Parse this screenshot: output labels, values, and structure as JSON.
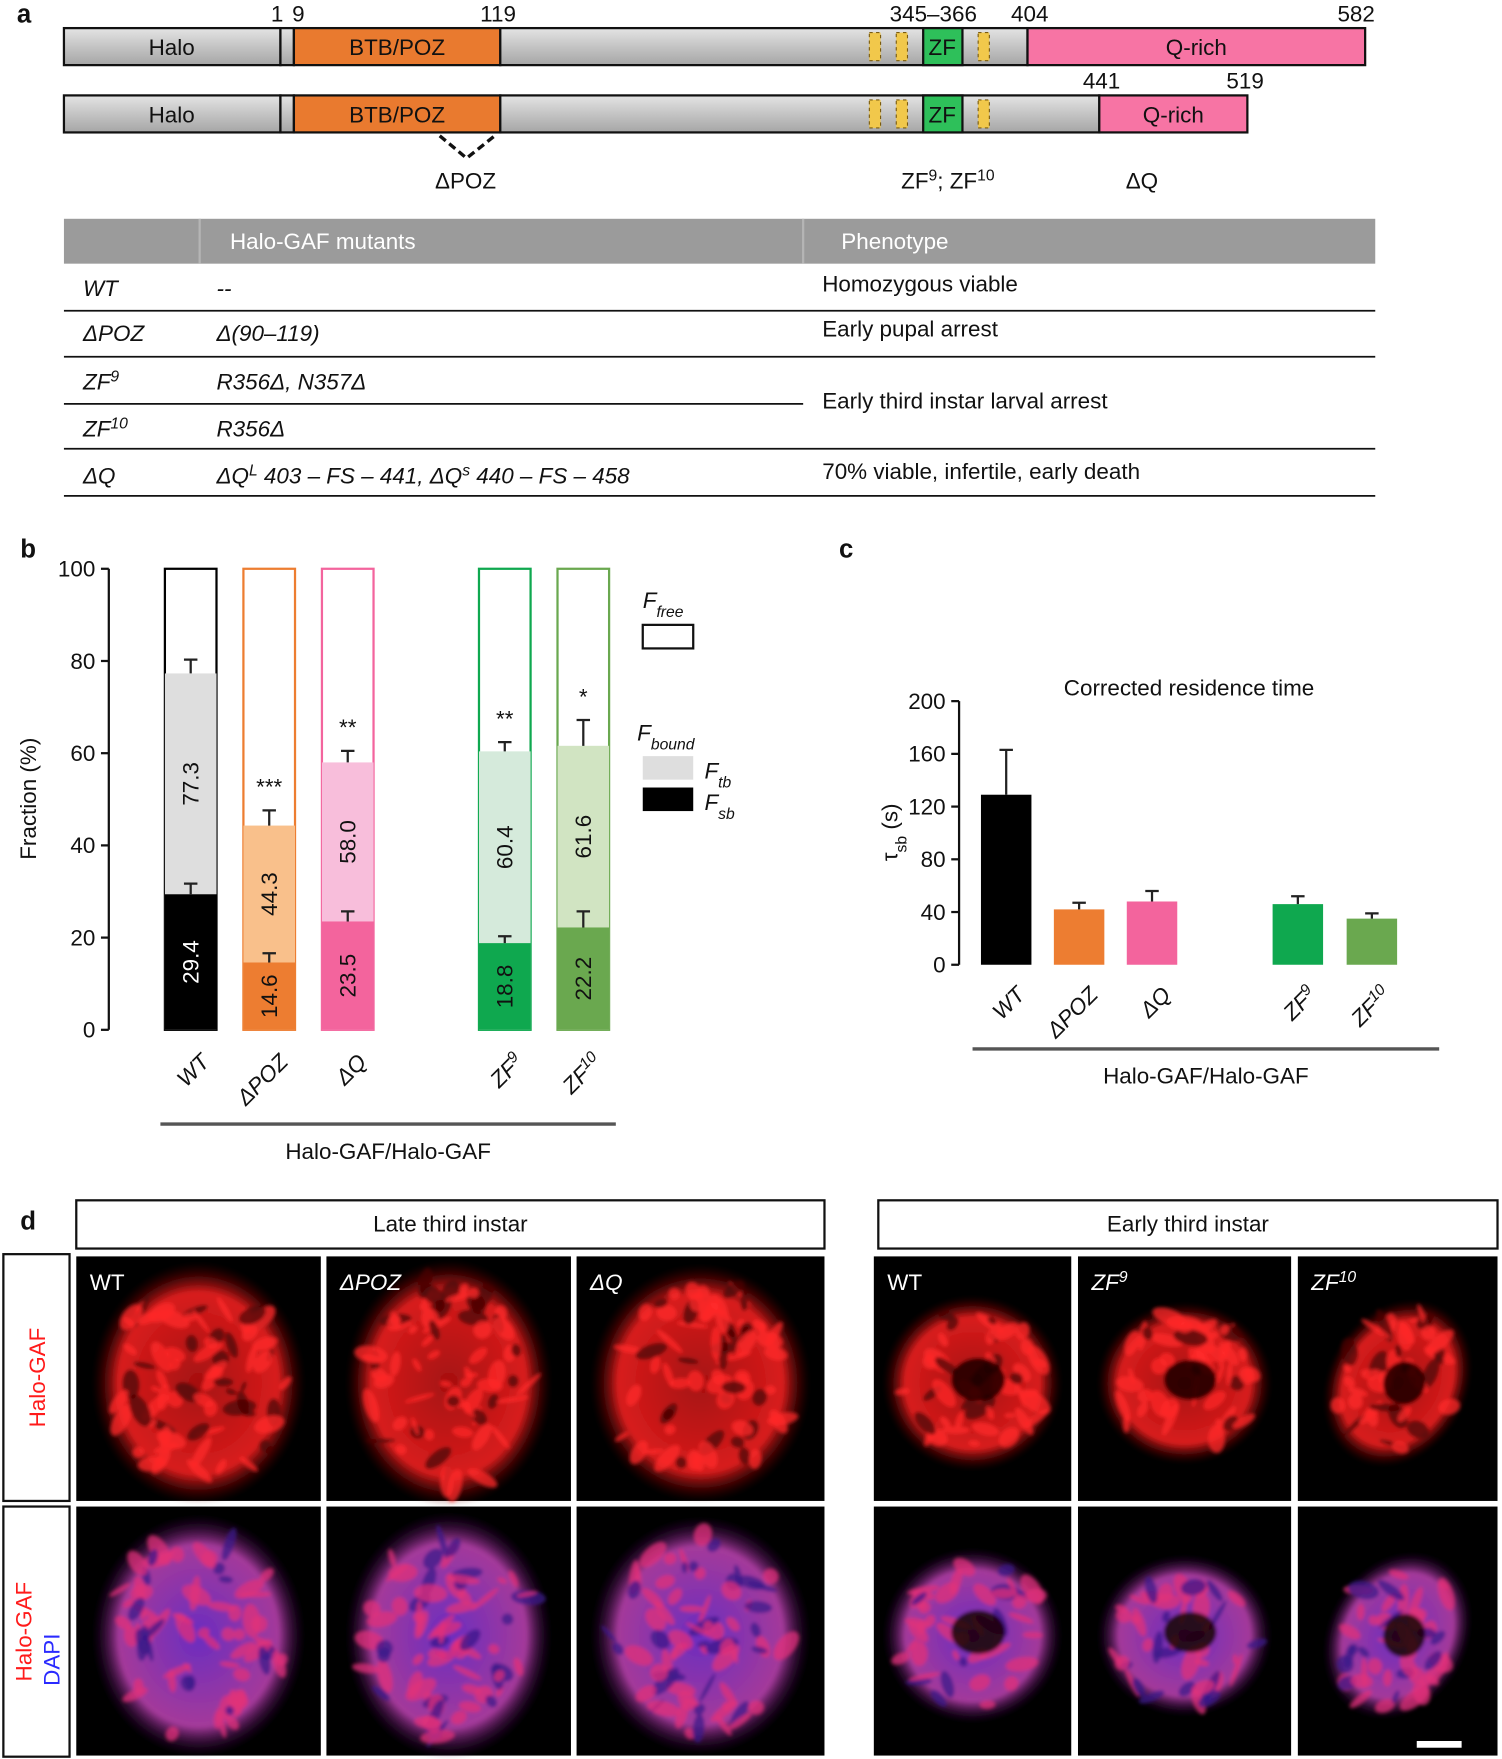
{
  "panel_a": {
    "label": "a",
    "construct_full": {
      "domains": [
        "Halo",
        "BTB/POZ",
        "ZF",
        "Q-rich"
      ],
      "positions": [
        "1",
        "9",
        "119",
        "345–366",
        "404",
        "582"
      ]
    },
    "construct_truncated": {
      "domains": [
        "Halo",
        "BTB/POZ",
        "ZF",
        "Q-rich"
      ],
      "positions": [
        "441",
        "519"
      ]
    },
    "mutation_sites": [
      "ΔPOZ",
      [
        "ZF",
        "9",
        "; ZF",
        "10"
      ],
      "ΔQ"
    ],
    "table": {
      "header": [
        "Halo-GAF mutants",
        "Phenotype"
      ],
      "rows": [
        {
          "mutant": [
            "WT"
          ],
          "mutation": [
            "--"
          ],
          "phenotype": "Homozygous viable"
        },
        {
          "mutant": [
            "ΔPOZ"
          ],
          "mutation": [
            "Δ(90–119)"
          ],
          "phenotype": "Early pupal arrest"
        },
        {
          "mutant": [
            "ZF",
            "9"
          ],
          "mutation": [
            "R356Δ, N357Δ"
          ],
          "phenotype": "Early third instar larval arrest"
        },
        {
          "mutant": [
            "ZF",
            "10"
          ],
          "mutation": [
            "R356Δ"
          ]
        },
        {
          "mutant": [
            "ΔQ"
          ],
          "mutation": [
            "ΔQ",
            "L",
            " 403 – FS – 441, ΔQ",
            "s",
            " 440 – FS – 458"
          ],
          "phenotype": "70% viable, infertile, early death"
        }
      ]
    }
  },
  "chart_data": [
    {
      "type": "bar",
      "label": "b",
      "barmode": "overlay",
      "categories": [
        [
          "WT"
        ],
        [
          "ΔPOZ"
        ],
        [
          "ΔQ"
        ],
        [
          "ZF",
          "9"
        ],
        [
          "ZF",
          "10"
        ]
      ],
      "ylabel": "Fraction (%)",
      "xlabel": "Halo-GAF/Halo-GAF",
      "ylim": [
        0,
        100
      ],
      "yticks": [
        0,
        20,
        40,
        60,
        80,
        100
      ],
      "outline_colors": [
        "#000000",
        "#ed7d31",
        "#f3649d",
        "#0fa84f",
        "#6aa84f"
      ],
      "series": [
        {
          "values": [
            77.3,
            44.3,
            58,
            60.4,
            61.6
          ],
          "value_labels": [
            "77.3",
            "44.3",
            "58.0",
            "60.4",
            "61.6"
          ],
          "errors": [
            3,
            3.3,
            2.5,
            2,
            5.6
          ],
          "colors": [
            "#dedede",
            "#f9c08b",
            "#f8bedb",
            "#d5eadb",
            "#d1e4c2"
          ]
        },
        {
          "values": [
            29.4,
            14.6,
            23.5,
            18.8,
            22.2
          ],
          "errors": [
            2.3,
            2,
            2.2,
            1.5,
            3.5
          ],
          "colors": [
            "#000000",
            "#ed7d31",
            "#f3649d",
            "#0fa84f",
            "#6aa84f"
          ]
        }
      ],
      "significance": [
        null,
        "***",
        "**",
        "**",
        "*"
      ],
      "legend": [
        {
          "name": [
            "F",
            "free"
          ],
          "color": "#ffffff"
        },
        {
          "name": [
            "F",
            "bound"
          ]
        },
        {
          "name": [
            "F",
            "tb"
          ],
          "color": "#dedede"
        },
        {
          "name": [
            "F",
            "sb"
          ],
          "color": "#000000"
        }
      ]
    },
    {
      "type": "bar",
      "label": "c",
      "title": "Corrected residence time",
      "categories": [
        [
          "WT"
        ],
        [
          "ΔPOZ"
        ],
        [
          "ΔQ"
        ],
        [
          "ZF",
          "9"
        ],
        [
          "ZF",
          "10"
        ]
      ],
      "ylabel": [
        "τ",
        "sb",
        " (s)"
      ],
      "xlabel": "Halo-GAF/Halo-GAF",
      "ylim": [
        0,
        200
      ],
      "yticks": [
        0,
        40,
        80,
        120,
        160,
        200
      ],
      "values": [
        129,
        42,
        48,
        46,
        35
      ],
      "errors": [
        34,
        5,
        8,
        6,
        4
      ],
      "colors": [
        "#000000",
        "#ed7d31",
        "#f3649d",
        "#0fa84f",
        "#6aa84f"
      ]
    }
  ],
  "panel_d": {
    "label": "d",
    "groups": [
      "Late third instar",
      "Early third instar"
    ],
    "rows": [
      [
        "Halo-GAF"
      ],
      [
        "Halo-GAF",
        "DAPI"
      ]
    ],
    "images": [
      [
        "WT"
      ],
      [
        "ΔPOZ"
      ],
      [
        "ΔQ"
      ],
      [
        "WT"
      ],
      [
        "ZF",
        "9"
      ],
      [
        "ZF",
        "10"
      ]
    ]
  }
}
